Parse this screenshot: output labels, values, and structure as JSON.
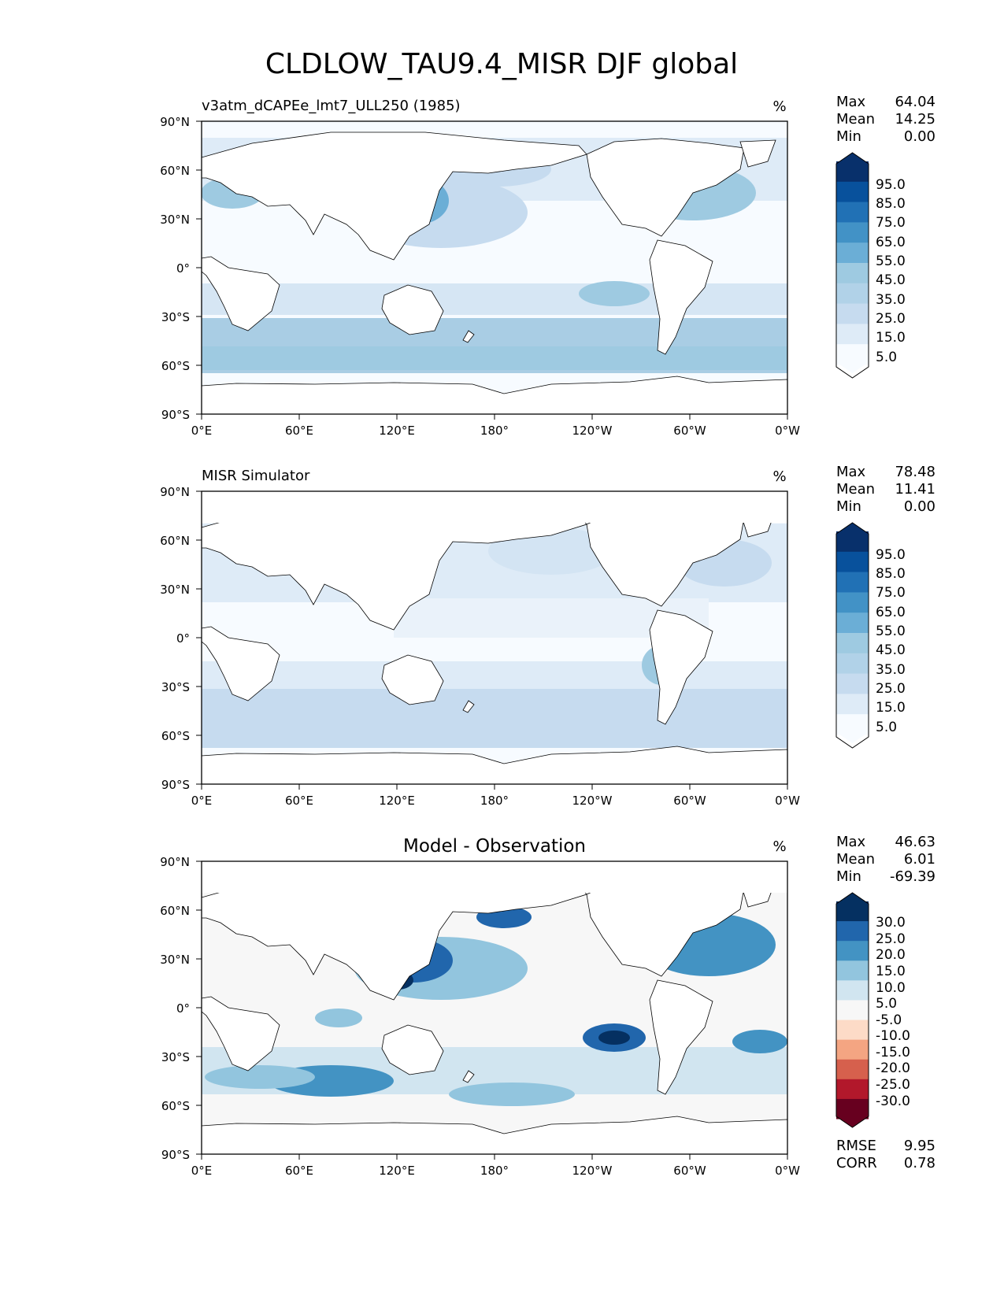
{
  "figure_title": "CLDLOW_TAU9.4_MISR DJF global",
  "unit_label": "%",
  "axes": {
    "lat_ticks": [
      "90°N",
      "60°N",
      "30°N",
      "0°",
      "30°S",
      "60°S",
      "90°S"
    ],
    "lon_ticks": [
      "0°E",
      "60°E",
      "120°E",
      "180°",
      "120°W",
      "60°W",
      "0°W"
    ]
  },
  "stat_labels": {
    "max": "Max",
    "mean": "Mean",
    "min": "Min",
    "rmse": "RMSE",
    "corr": "CORR"
  },
  "panels": [
    {
      "id": "model",
      "title": "v3atm_dCAPEe_lmt7_ULL250 (1985)",
      "stats": {
        "max": "64.04",
        "mean": "14.25",
        "min": "0.00"
      },
      "colorbar_ticks": [
        "95.0",
        "85.0",
        "75.0",
        "65.0",
        "55.0",
        "45.0",
        "35.0",
        "25.0",
        "15.0",
        "5.0"
      ]
    },
    {
      "id": "obs",
      "title": "MISR Simulator",
      "stats": {
        "max": "78.48",
        "mean": "11.41",
        "min": "0.00"
      },
      "colorbar_ticks": [
        "95.0",
        "85.0",
        "75.0",
        "65.0",
        "55.0",
        "45.0",
        "35.0",
        "25.0",
        "15.0",
        "5.0"
      ]
    },
    {
      "id": "diff",
      "title": "Model - Observation",
      "stats": {
        "max": "46.63",
        "mean": "6.01",
        "min": "-69.39"
      },
      "colorbar_ticks": [
        "30.0",
        "25.0",
        "20.0",
        "15.0",
        "10.0",
        "5.0",
        "-5.0",
        "-10.0",
        "-15.0",
        "-20.0",
        "-25.0",
        "-30.0"
      ],
      "rmse": "9.95",
      "corr": "0.78"
    }
  ],
  "colors": {
    "blues": [
      "#f7fbff",
      "#deebf7",
      "#c6dbef",
      "#b1d2e8",
      "#9ecae1",
      "#6baed6",
      "#4292c6",
      "#2171b5",
      "#08519c",
      "#08306b"
    ],
    "diverging": [
      "#67001f",
      "#b2182b",
      "#d6604d",
      "#f4a582",
      "#fddbc7",
      "#f7f7f7",
      "#d1e5f0",
      "#92c5de",
      "#4393c3",
      "#2166ac",
      "#053061"
    ]
  }
}
